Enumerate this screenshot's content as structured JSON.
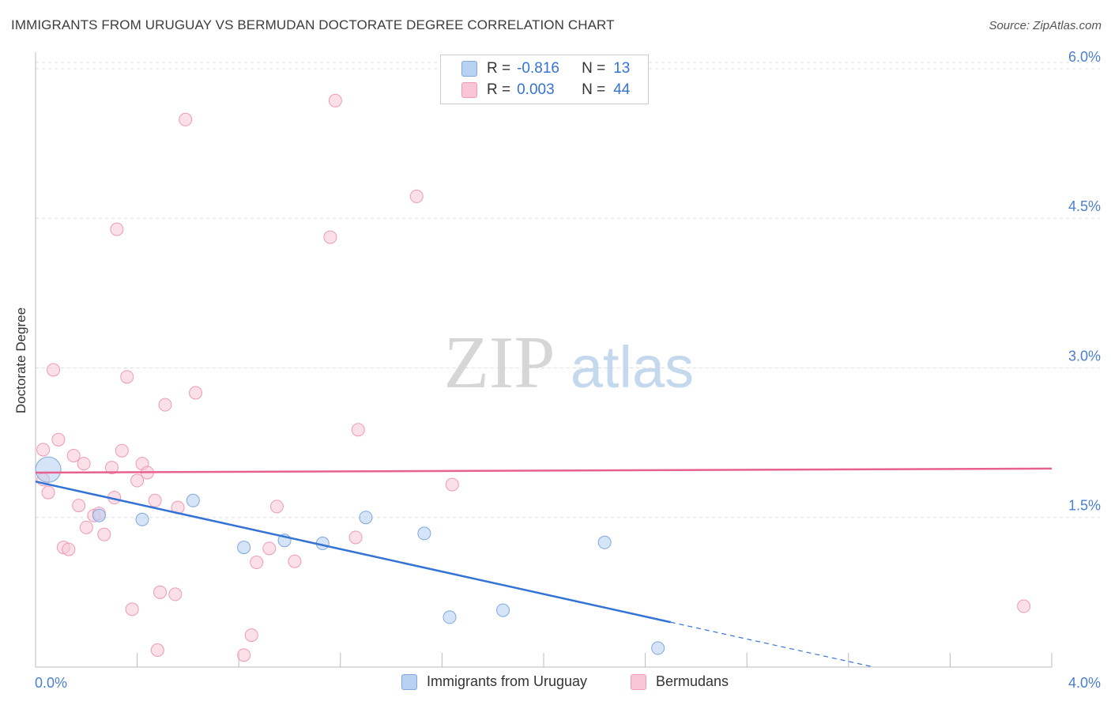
{
  "title": "IMMIGRANTS FROM URUGUAY VS BERMUDAN DOCTORATE DEGREE CORRELATION CHART",
  "source": "Source: ZipAtlas.com",
  "watermark": {
    "zip": "ZIP",
    "atlas": "atlas"
  },
  "colors": {
    "blue_fill": "#b9d2f1",
    "blue_stroke": "#7ea8df",
    "blue_line": "#3373d4",
    "pink_fill": "#f8c6d6",
    "pink_stroke": "#ee9ab5",
    "pink_line": "#e8608e",
    "tick_text": "#4a7fd0",
    "grid": "#dddddd"
  },
  "legend": {
    "rows": [
      {
        "r_label": "R =",
        "r_value": "-0.816",
        "n_label": "N =",
        "n_value": "13"
      },
      {
        "r_label": "R =",
        "r_value": "0.003",
        "n_label": "N =",
        "n_value": "44"
      }
    ]
  },
  "bottom_legend": {
    "series1": "Immigrants from Uruguay",
    "series2": "Bermudans"
  },
  "chart_data": {
    "type": "scatter",
    "title": "IMMIGRANTS FROM URUGUAY VS BERMUDAN DOCTORATE DEGREE CORRELATION CHART",
    "xlabel": "",
    "ylabel": "Doctorate Degree",
    "xlim": [
      0.0,
      4.0
    ],
    "ylim": [
      0.0,
      6.15
    ],
    "x_tick_labels": [
      "0.0%",
      "4.0%"
    ],
    "y_ticks": [
      1.5,
      3.0,
      4.5,
      6.0
    ],
    "y_tick_labels": [
      "1.5%",
      "3.0%",
      "4.5%",
      "6.0%"
    ],
    "grid": true,
    "series": [
      {
        "name": "Immigrants from Uruguay",
        "color": "#b9d2f1",
        "R": -0.816,
        "N": 13,
        "points": [
          {
            "x": 0.05,
            "y": 1.98,
            "big": true
          },
          {
            "x": 0.25,
            "y": 1.52
          },
          {
            "x": 0.42,
            "y": 1.48
          },
          {
            "x": 0.62,
            "y": 1.67
          },
          {
            "x": 0.82,
            "y": 1.2
          },
          {
            "x": 0.98,
            "y": 1.27
          },
          {
            "x": 1.13,
            "y": 1.24
          },
          {
            "x": 1.3,
            "y": 1.5
          },
          {
            "x": 1.53,
            "y": 1.34
          },
          {
            "x": 1.63,
            "y": 0.5
          },
          {
            "x": 1.84,
            "y": 0.57
          },
          {
            "x": 2.24,
            "y": 1.25
          },
          {
            "x": 2.45,
            "y": 0.19
          }
        ],
        "trend": {
          "x0": 0.0,
          "y0": 1.86,
          "x1": 2.5,
          "y1": 0.45,
          "dash_to_x": 3.3,
          "dash_to_y": 0.0
        }
      },
      {
        "name": "Bermudans",
        "color": "#f8c6d6",
        "R": 0.003,
        "N": 44,
        "points": [
          {
            "x": 0.03,
            "y": 2.18
          },
          {
            "x": 0.03,
            "y": 1.88
          },
          {
            "x": 0.05,
            "y": 1.75
          },
          {
            "x": 0.07,
            "y": 2.98
          },
          {
            "x": 0.09,
            "y": 2.28
          },
          {
            "x": 0.11,
            "y": 1.2
          },
          {
            "x": 0.13,
            "y": 1.18
          },
          {
            "x": 0.15,
            "y": 2.12
          },
          {
            "x": 0.17,
            "y": 1.62
          },
          {
            "x": 0.19,
            "y": 2.04
          },
          {
            "x": 0.2,
            "y": 1.4
          },
          {
            "x": 0.23,
            "y": 1.52
          },
          {
            "x": 0.25,
            "y": 1.54
          },
          {
            "x": 0.27,
            "y": 1.33
          },
          {
            "x": 0.3,
            "y": 2.0
          },
          {
            "x": 0.31,
            "y": 1.7
          },
          {
            "x": 0.32,
            "y": 4.39
          },
          {
            "x": 0.34,
            "y": 2.17
          },
          {
            "x": 0.36,
            "y": 2.91
          },
          {
            "x": 0.38,
            "y": 0.58
          },
          {
            "x": 0.4,
            "y": 1.87
          },
          {
            "x": 0.42,
            "y": 2.04
          },
          {
            "x": 0.44,
            "y": 1.95
          },
          {
            "x": 0.47,
            "y": 1.67
          },
          {
            "x": 0.48,
            "y": 0.17
          },
          {
            "x": 0.49,
            "y": 0.75
          },
          {
            "x": 0.51,
            "y": 2.63
          },
          {
            "x": 0.55,
            "y": 0.73
          },
          {
            "x": 0.56,
            "y": 1.6
          },
          {
            "x": 0.59,
            "y": 5.49
          },
          {
            "x": 0.63,
            "y": 2.75
          },
          {
            "x": 0.82,
            "y": 0.12
          },
          {
            "x": 0.85,
            "y": 0.32
          },
          {
            "x": 0.87,
            "y": 1.05
          },
          {
            "x": 0.92,
            "y": 1.19
          },
          {
            "x": 0.95,
            "y": 1.61
          },
          {
            "x": 1.02,
            "y": 1.06
          },
          {
            "x": 1.16,
            "y": 4.31
          },
          {
            "x": 1.18,
            "y": 5.68
          },
          {
            "x": 1.26,
            "y": 1.3
          },
          {
            "x": 1.27,
            "y": 2.38
          },
          {
            "x": 1.5,
            "y": 4.72
          },
          {
            "x": 1.64,
            "y": 1.83
          },
          {
            "x": 3.89,
            "y": 0.61
          }
        ],
        "trend": {
          "x0": 0.0,
          "y0": 1.95,
          "x1": 4.0,
          "y1": 1.99
        }
      }
    ]
  }
}
